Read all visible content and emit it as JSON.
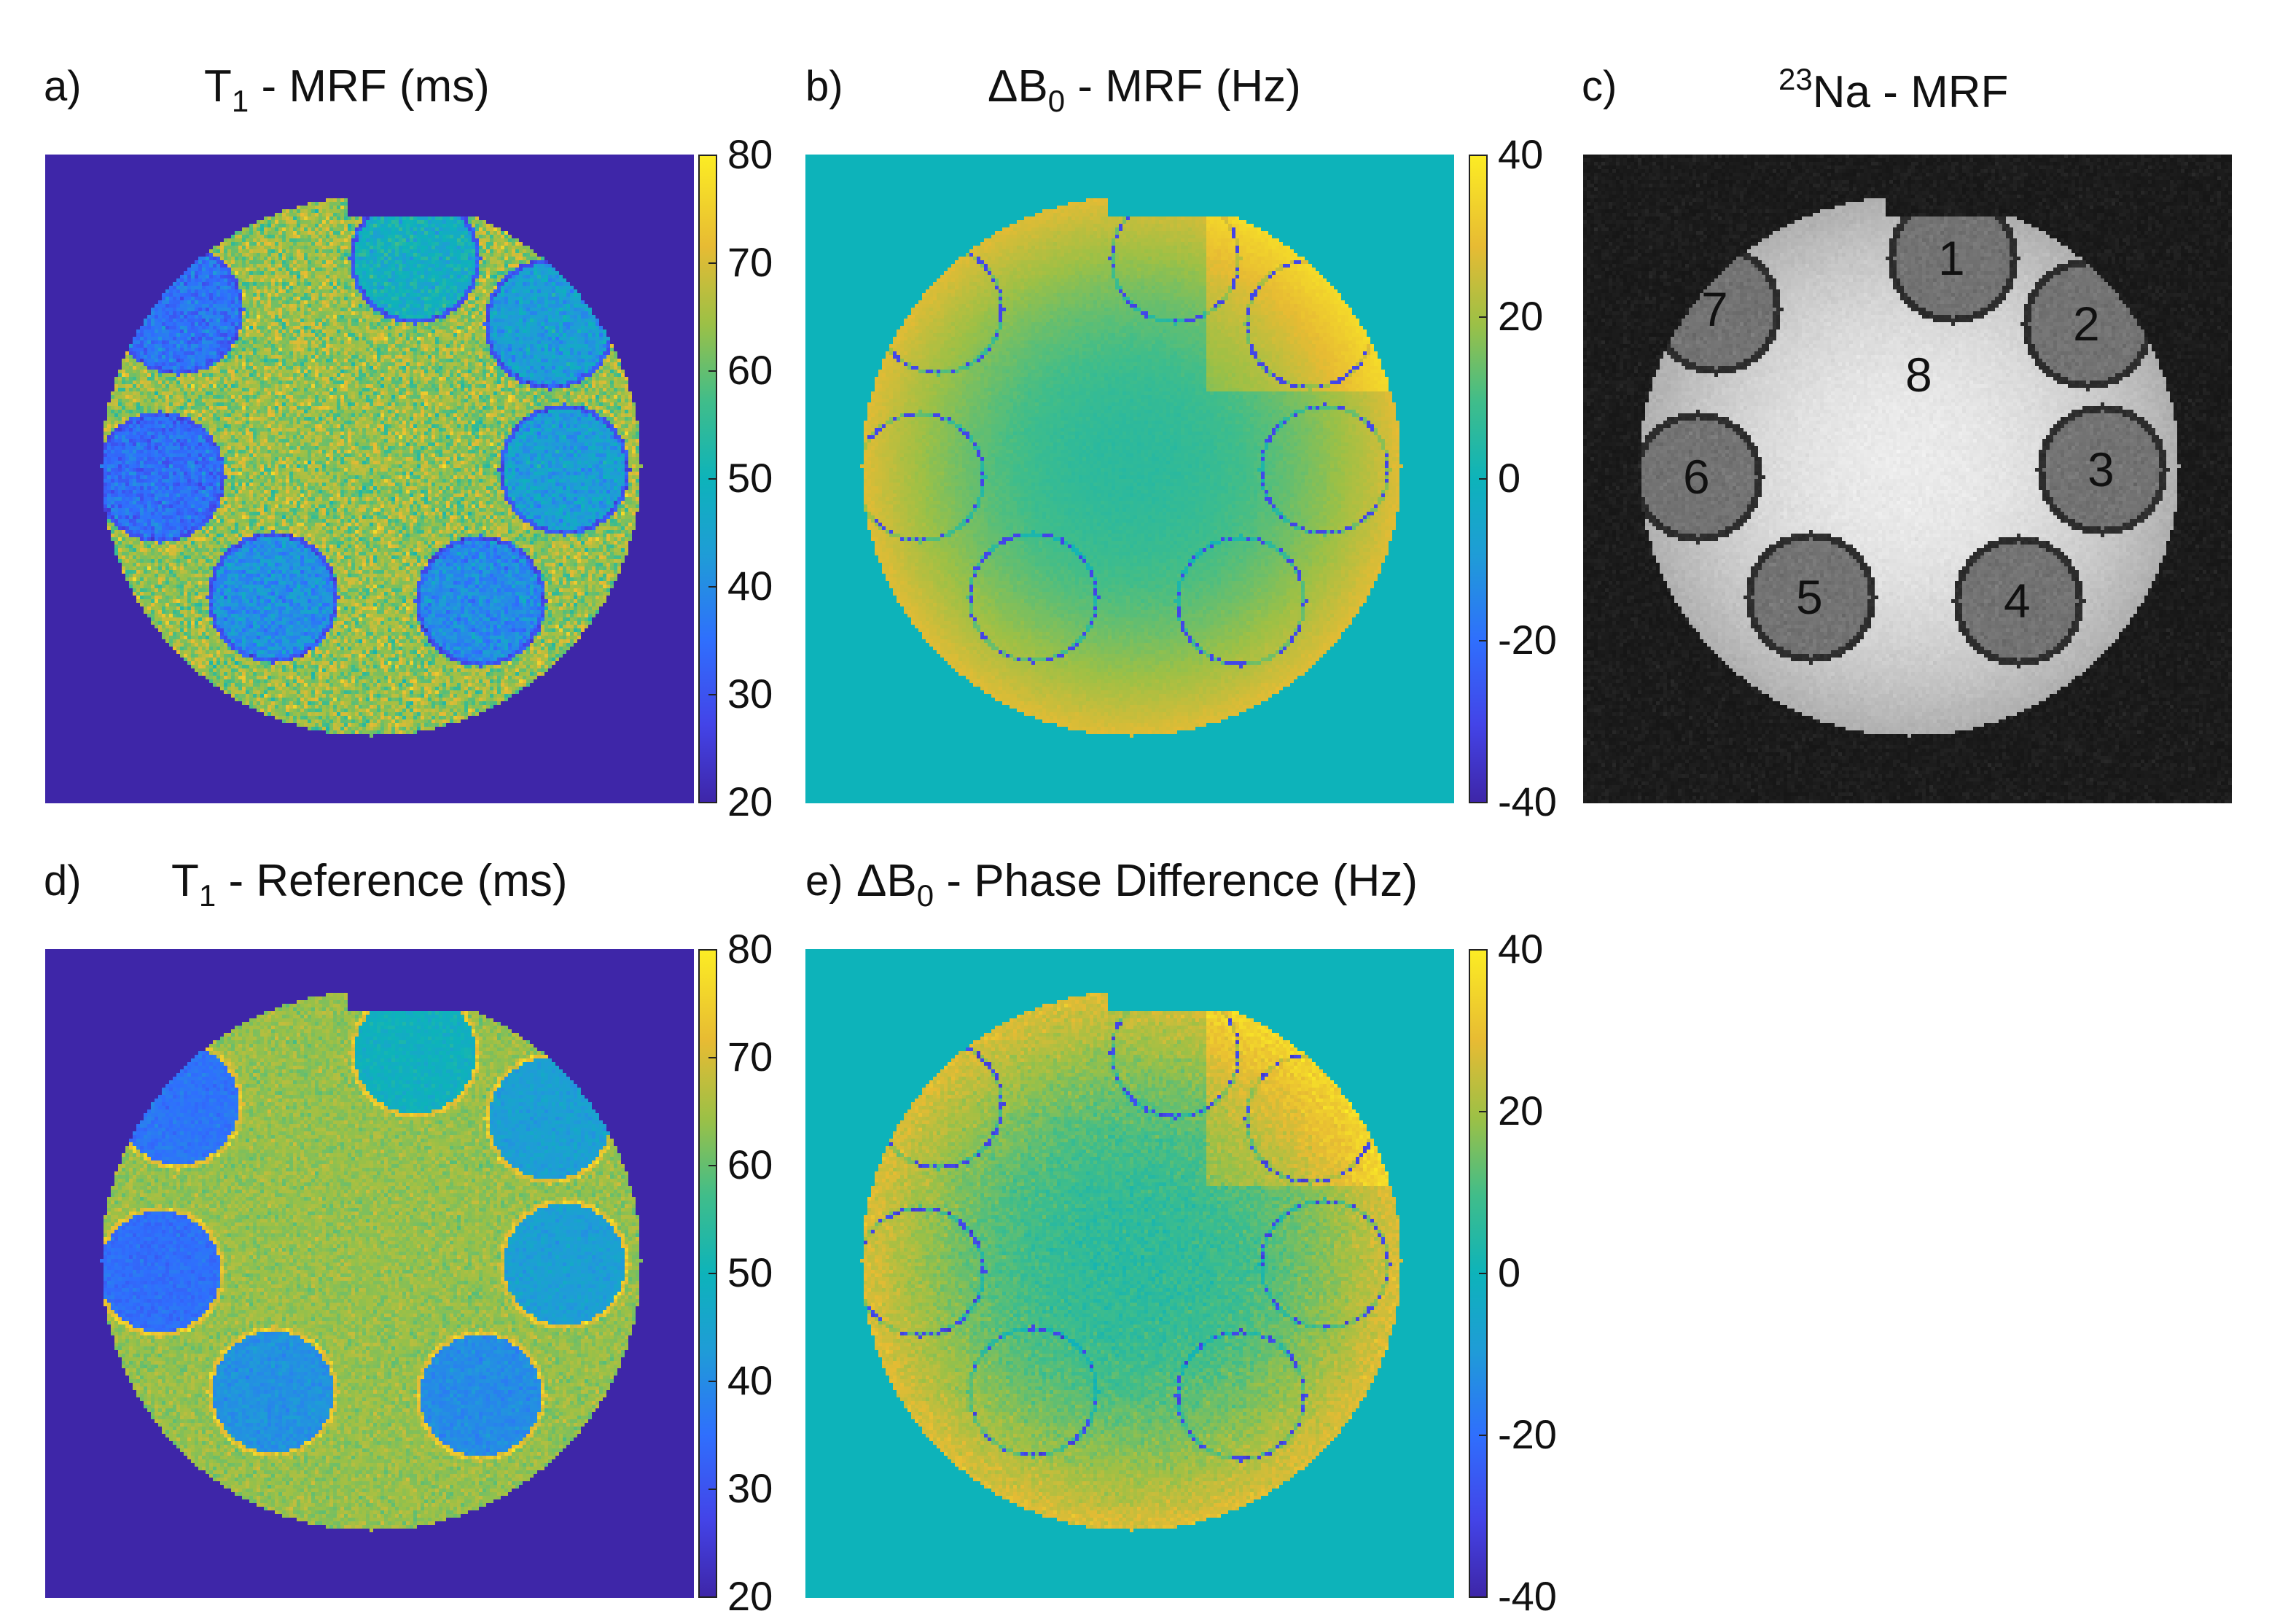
{
  "panels": {
    "a": {
      "letter": "a)",
      "title_main": "T",
      "title_sub": "1",
      "title_rest": " - MRF (ms)",
      "colorbar": {
        "ticks": [
          "80",
          "70",
          "60",
          "50",
          "40",
          "30",
          "20"
        ],
        "min": 20,
        "max": 80
      }
    },
    "b": {
      "letter": "b)",
      "title_main": "ΔB",
      "title_sub": "0",
      "title_rest": " - MRF (Hz)",
      "colorbar": {
        "ticks": [
          "40",
          "20",
          "0",
          "-20",
          "-40"
        ],
        "min": -40,
        "max": 40
      }
    },
    "c": {
      "letter": "c)",
      "title_sup": "23",
      "title_rest": "Na - MRF",
      "vial_labels": [
        "1",
        "2",
        "3",
        "4",
        "5",
        "6",
        "7",
        "8"
      ]
    },
    "d": {
      "letter": "d)",
      "title_main": "T",
      "title_sub": "1",
      "title_rest": " - Reference (ms)",
      "colorbar": {
        "ticks": [
          "80",
          "70",
          "60",
          "50",
          "40",
          "30",
          "20"
        ],
        "min": 20,
        "max": 80
      }
    },
    "e": {
      "letter": "e)",
      "title_main": "ΔB",
      "title_sub": "0",
      "title_rest": " - Phase Difference (Hz)",
      "colorbar": {
        "ticks": [
          "40",
          "20",
          "0",
          "-20",
          "-40"
        ],
        "min": -40,
        "max": 40
      }
    }
  },
  "colors": {
    "background_t1": "#3b2aa3",
    "background_b0": "#1abfb3",
    "sodium_bg": "#0d0d0d"
  }
}
